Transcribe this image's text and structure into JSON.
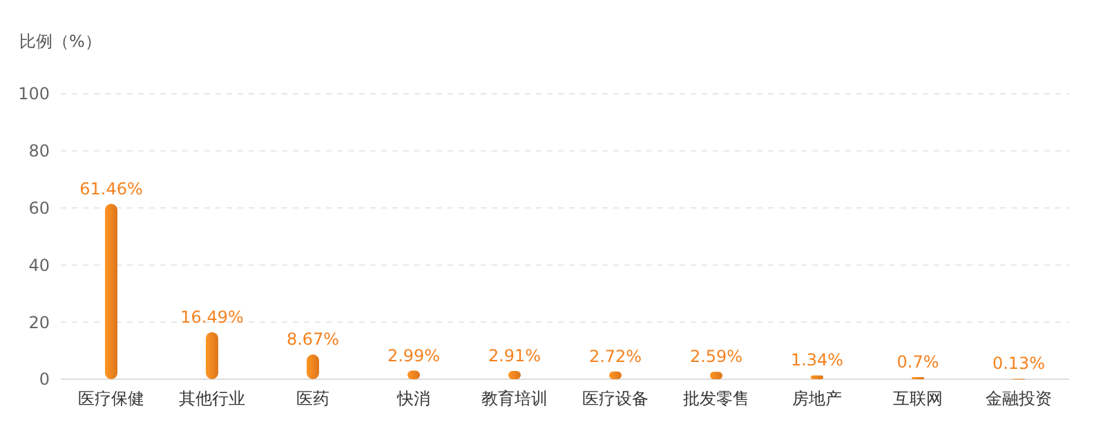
{
  "chart_data": {
    "type": "bar",
    "ylabel": "比例（%）",
    "categories": [
      "医疗保健",
      "其他行业",
      "医药",
      "快消",
      "教育培训",
      "医疗设备",
      "批发零售",
      "房地产",
      "互联网",
      "金融投资"
    ],
    "values": [
      61.46,
      16.49,
      8.67,
      2.99,
      2.91,
      2.72,
      2.59,
      1.34,
      0.7,
      0.13
    ],
    "value_labels": [
      "61.46%",
      "16.49%",
      "8.67%",
      "2.99%",
      "2.91%",
      "2.72%",
      "2.59%",
      "1.34%",
      "0.7%",
      "0.13%"
    ],
    "color": "#f5821f",
    "ylim": [
      0,
      100
    ],
    "yticks": [
      0,
      20,
      40,
      60,
      80,
      100
    ],
    "grid": "y"
  }
}
